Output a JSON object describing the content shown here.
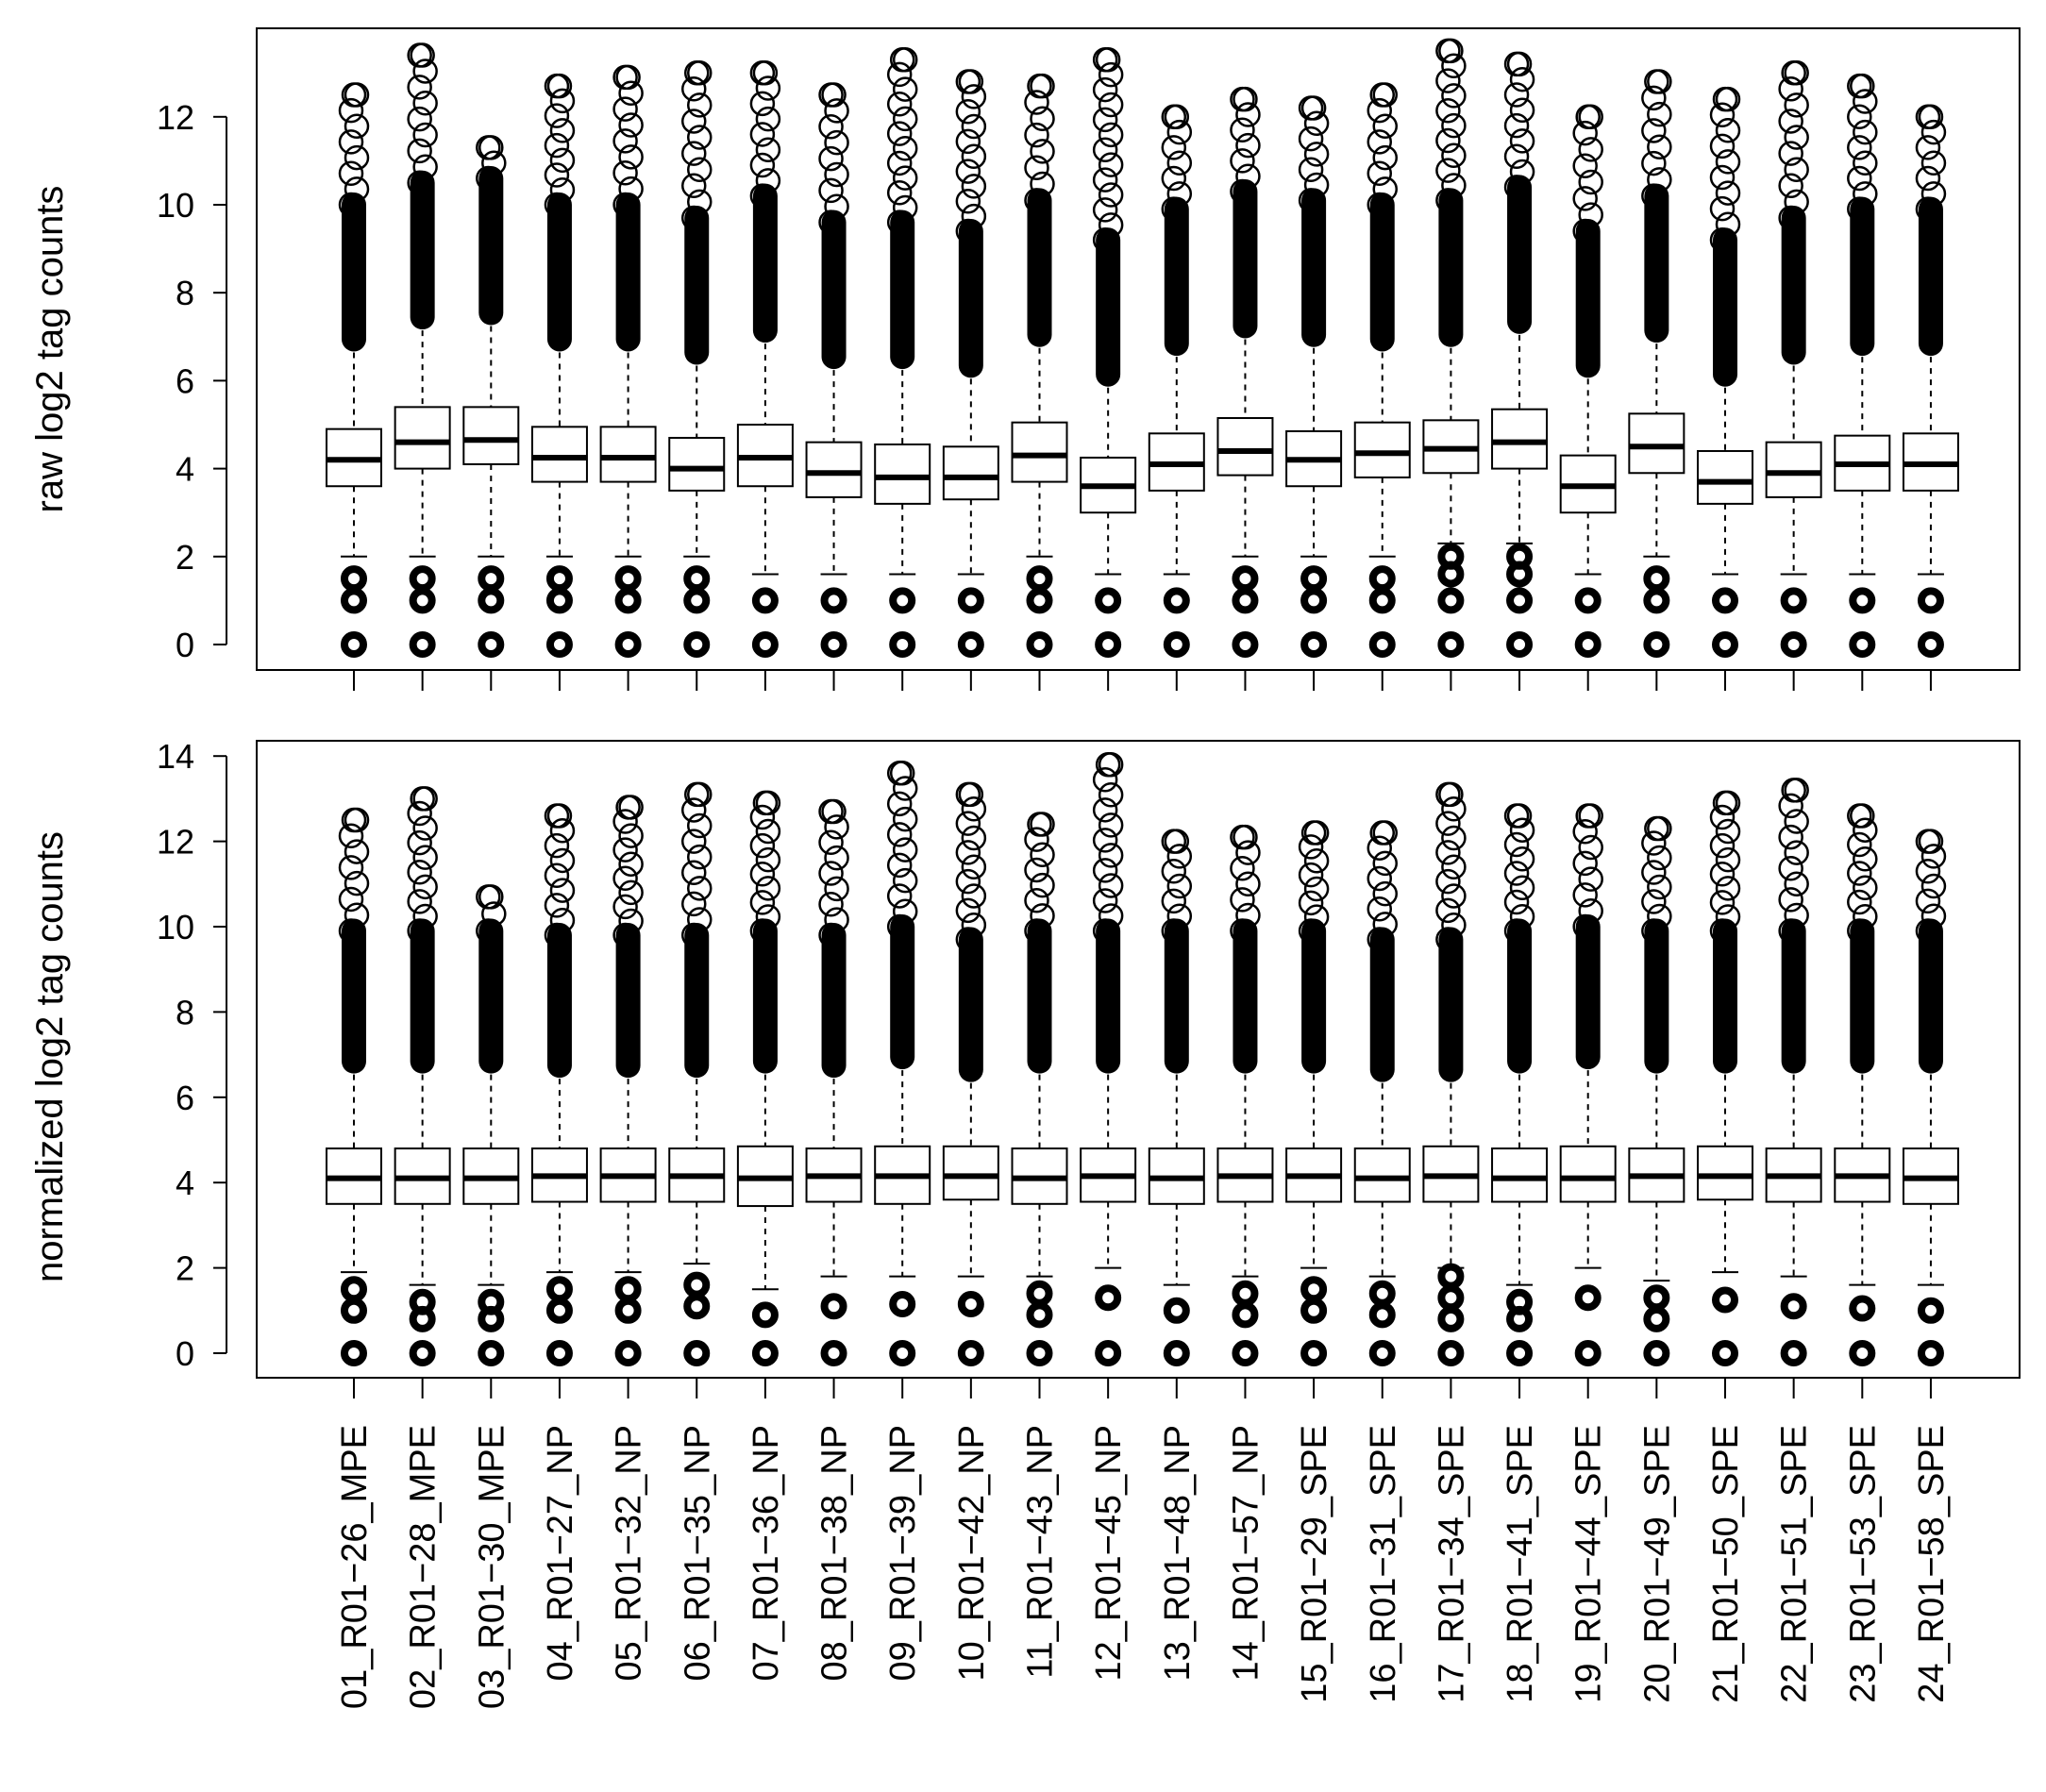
{
  "chart_data": [
    {
      "type": "boxplot",
      "ylabel": "raw log2 tag counts",
      "ylim": [
        0,
        13.4
      ],
      "yticks": [
        0,
        2,
        4,
        6,
        8,
        10,
        12
      ],
      "categories": [
        "01_R01−26_MPE",
        "02_R01−28_MPE",
        "03_R01−30_MPE",
        "04_R01−27_NP",
        "05_R01−32_NP",
        "06_R01−35_NP",
        "07_R01−36_NP",
        "08_R01−38_NP",
        "09_R01−39_NP",
        "10_R01−42_NP",
        "11_R01−43_NP",
        "12_R01−45_NP",
        "13_R01−48_NP",
        "14_R01−57_NP",
        "15_R01−29_SPE",
        "16_R01−31_SPE",
        "17_R01−34_SPE",
        "18_R01−41_SPE",
        "19_R01−44_SPE",
        "20_R01−49_SPE",
        "21_R01−50_SPE",
        "22_R01−51_SPE",
        "23_R01−53_SPE",
        "24_R01−58_SPE"
      ],
      "boxes": [
        {
          "q1": 3.6,
          "median": 4.2,
          "q3": 4.9,
          "lower": 2.0,
          "upper": 6.9,
          "top": 12.5
        },
        {
          "q1": 4.0,
          "median": 4.6,
          "q3": 5.4,
          "lower": 2.0,
          "upper": 7.4,
          "top": 13.4
        },
        {
          "q1": 4.1,
          "median": 4.65,
          "q3": 5.4,
          "lower": 2.0,
          "upper": 7.5,
          "top": 11.3
        },
        {
          "q1": 3.7,
          "median": 4.25,
          "q3": 4.95,
          "lower": 2.0,
          "upper": 6.9,
          "top": 12.7
        },
        {
          "q1": 3.7,
          "median": 4.25,
          "q3": 4.95,
          "lower": 2.0,
          "upper": 6.9,
          "top": 12.9
        },
        {
          "q1": 3.5,
          "median": 4.0,
          "q3": 4.7,
          "lower": 2.0,
          "upper": 6.6,
          "top": 13.0
        },
        {
          "q1": 3.6,
          "median": 4.25,
          "q3": 5.0,
          "lower": 1.6,
          "upper": 7.1,
          "top": 13.0
        },
        {
          "q1": 3.35,
          "median": 3.9,
          "q3": 4.6,
          "lower": 1.6,
          "upper": 6.5,
          "top": 12.5
        },
        {
          "q1": 3.2,
          "median": 3.8,
          "q3": 4.55,
          "lower": 1.6,
          "upper": 6.5,
          "top": 13.3
        },
        {
          "q1": 3.3,
          "median": 3.8,
          "q3": 4.5,
          "lower": 1.6,
          "upper": 6.3,
          "top": 12.8
        },
        {
          "q1": 3.7,
          "median": 4.3,
          "q3": 5.05,
          "lower": 2.0,
          "upper": 7.0,
          "top": 12.7
        },
        {
          "q1": 3.0,
          "median": 3.6,
          "q3": 4.25,
          "lower": 1.6,
          "upper": 6.1,
          "top": 13.3
        },
        {
          "q1": 3.5,
          "median": 4.1,
          "q3": 4.8,
          "lower": 1.6,
          "upper": 6.8,
          "top": 12.0
        },
        {
          "q1": 3.85,
          "median": 4.4,
          "q3": 5.15,
          "lower": 2.0,
          "upper": 7.2,
          "top": 12.4
        },
        {
          "q1": 3.6,
          "median": 4.2,
          "q3": 4.85,
          "lower": 2.0,
          "upper": 7.0,
          "top": 12.2
        },
        {
          "q1": 3.8,
          "median": 4.35,
          "q3": 5.05,
          "lower": 2.0,
          "upper": 6.9,
          "top": 12.5
        },
        {
          "q1": 3.9,
          "median": 4.45,
          "q3": 5.1,
          "lower": 2.3,
          "upper": 7.0,
          "top": 13.5
        },
        {
          "q1": 4.0,
          "median": 4.6,
          "q3": 5.35,
          "lower": 2.3,
          "upper": 7.3,
          "top": 13.2
        },
        {
          "q1": 3.0,
          "median": 3.6,
          "q3": 4.3,
          "lower": 1.6,
          "upper": 6.3,
          "top": 12.0
        },
        {
          "q1": 3.9,
          "median": 4.5,
          "q3": 5.25,
          "lower": 2.0,
          "upper": 7.1,
          "top": 12.8
        },
        {
          "q1": 3.2,
          "median": 3.7,
          "q3": 4.4,
          "lower": 1.6,
          "upper": 6.1,
          "top": 12.4
        },
        {
          "q1": 3.35,
          "median": 3.9,
          "q3": 4.6,
          "lower": 1.6,
          "upper": 6.6,
          "top": 13.0
        },
        {
          "q1": 3.5,
          "median": 4.1,
          "q3": 4.75,
          "lower": 1.6,
          "upper": 6.8,
          "top": 12.7
        },
        {
          "q1": 3.5,
          "median": 4.1,
          "q3": 4.8,
          "lower": 1.6,
          "upper": 6.8,
          "top": 12.0
        }
      ],
      "low_outliers": [
        [
          0,
          1,
          1.5
        ],
        [
          0,
          1,
          1.5
        ],
        [
          0,
          1,
          1.5
        ],
        [
          0,
          1,
          1.5
        ],
        [
          0,
          1,
          1.5
        ],
        [
          0,
          1,
          1.5
        ],
        [
          0,
          1
        ],
        [
          0,
          1
        ],
        [
          0,
          1
        ],
        [
          0,
          1
        ],
        [
          0,
          1,
          1.5
        ],
        [
          0,
          1
        ],
        [
          0,
          1
        ],
        [
          0,
          1,
          1.5
        ],
        [
          0,
          1,
          1.5
        ],
        [
          0,
          1,
          1.5
        ],
        [
          0,
          1,
          1.6,
          2.0
        ],
        [
          0,
          1,
          1.6,
          2.0
        ],
        [
          0,
          1
        ],
        [
          0,
          1,
          1.5
        ],
        [
          0,
          1
        ],
        [
          0,
          1
        ],
        [
          0,
          1
        ],
        [
          0,
          1
        ]
      ]
    },
    {
      "type": "boxplot",
      "ylabel": "normalized log2 tag counts",
      "ylim": [
        0,
        14
      ],
      "yticks": [
        0,
        2,
        4,
        6,
        8,
        10,
        12,
        14
      ],
      "boxes": [
        {
          "q1": 3.5,
          "median": 4.1,
          "q3": 4.8,
          "lower": 1.9,
          "upper": 6.8,
          "top": 12.5
        },
        {
          "q1": 3.5,
          "median": 4.1,
          "q3": 4.8,
          "lower": 1.6,
          "upper": 6.8,
          "top": 13.0
        },
        {
          "q1": 3.5,
          "median": 4.1,
          "q3": 4.8,
          "lower": 1.6,
          "upper": 6.8,
          "top": 10.7
        },
        {
          "q1": 3.55,
          "median": 4.15,
          "q3": 4.8,
          "lower": 1.9,
          "upper": 6.7,
          "top": 12.6
        },
        {
          "q1": 3.55,
          "median": 4.15,
          "q3": 4.8,
          "lower": 1.9,
          "upper": 6.7,
          "top": 12.8
        },
        {
          "q1": 3.55,
          "median": 4.15,
          "q3": 4.8,
          "lower": 2.1,
          "upper": 6.7,
          "top": 13.1
        },
        {
          "q1": 3.45,
          "median": 4.1,
          "q3": 4.85,
          "lower": 1.5,
          "upper": 6.8,
          "top": 12.9
        },
        {
          "q1": 3.55,
          "median": 4.15,
          "q3": 4.8,
          "lower": 1.8,
          "upper": 6.7,
          "top": 12.7
        },
        {
          "q1": 3.5,
          "median": 4.15,
          "q3": 4.85,
          "lower": 1.8,
          "upper": 6.9,
          "top": 13.6
        },
        {
          "q1": 3.6,
          "median": 4.15,
          "q3": 4.85,
          "lower": 1.8,
          "upper": 6.6,
          "top": 13.1
        },
        {
          "q1": 3.5,
          "median": 4.1,
          "q3": 4.8,
          "lower": 1.8,
          "upper": 6.8,
          "top": 12.4
        },
        {
          "q1": 3.55,
          "median": 4.15,
          "q3": 4.8,
          "lower": 2.0,
          "upper": 6.8,
          "top": 13.8
        },
        {
          "q1": 3.5,
          "median": 4.1,
          "q3": 4.8,
          "lower": 1.6,
          "upper": 6.8,
          "top": 12.0
        },
        {
          "q1": 3.55,
          "median": 4.15,
          "q3": 4.8,
          "lower": 1.8,
          "upper": 6.8,
          "top": 12.1
        },
        {
          "q1": 3.55,
          "median": 4.15,
          "q3": 4.8,
          "lower": 2.0,
          "upper": 6.8,
          "top": 12.2
        },
        {
          "q1": 3.55,
          "median": 4.1,
          "q3": 4.8,
          "lower": 1.8,
          "upper": 6.6,
          "top": 12.2
        },
        {
          "q1": 3.55,
          "median": 4.15,
          "q3": 4.85,
          "lower": 2.0,
          "upper": 6.6,
          "top": 13.1
        },
        {
          "q1": 3.55,
          "median": 4.1,
          "q3": 4.8,
          "lower": 1.6,
          "upper": 6.8,
          "top": 12.6
        },
        {
          "q1": 3.55,
          "median": 4.1,
          "q3": 4.85,
          "lower": 2.0,
          "upper": 6.9,
          "top": 12.6
        },
        {
          "q1": 3.55,
          "median": 4.15,
          "q3": 4.8,
          "lower": 1.7,
          "upper": 6.8,
          "top": 12.3
        },
        {
          "q1": 3.6,
          "median": 4.15,
          "q3": 4.85,
          "lower": 1.9,
          "upper": 6.8,
          "top": 12.9
        },
        {
          "q1": 3.55,
          "median": 4.15,
          "q3": 4.8,
          "lower": 1.8,
          "upper": 6.8,
          "top": 13.2
        },
        {
          "q1": 3.55,
          "median": 4.15,
          "q3": 4.8,
          "lower": 1.6,
          "upper": 6.8,
          "top": 12.6
        },
        {
          "q1": 3.5,
          "median": 4.1,
          "q3": 4.8,
          "lower": 1.6,
          "upper": 6.8,
          "top": 12.0
        }
      ],
      "low_outliers": [
        [
          0,
          1,
          1.5
        ],
        [
          0,
          0.8,
          1.2
        ],
        [
          0,
          0.8,
          1.2
        ],
        [
          0,
          1,
          1.5
        ],
        [
          0,
          1,
          1.5
        ],
        [
          0,
          1.1,
          1.6
        ],
        [
          0,
          0.9
        ],
        [
          0,
          1.1
        ],
        [
          0,
          1.15
        ],
        [
          0,
          1.15
        ],
        [
          0,
          0.9,
          1.4
        ],
        [
          0,
          1.3
        ],
        [
          0,
          1
        ],
        [
          0,
          0.9,
          1.4
        ],
        [
          0,
          1,
          1.5
        ],
        [
          0,
          0.9,
          1.4
        ],
        [
          0,
          0.8,
          1.3,
          1.8
        ],
        [
          0,
          0.8,
          1.2
        ],
        [
          0,
          1.3
        ],
        [
          0,
          0.8,
          1.3
        ],
        [
          0,
          1.25
        ],
        [
          0,
          1.1
        ],
        [
          0,
          1.05
        ],
        [
          0,
          1.0
        ]
      ]
    }
  ]
}
